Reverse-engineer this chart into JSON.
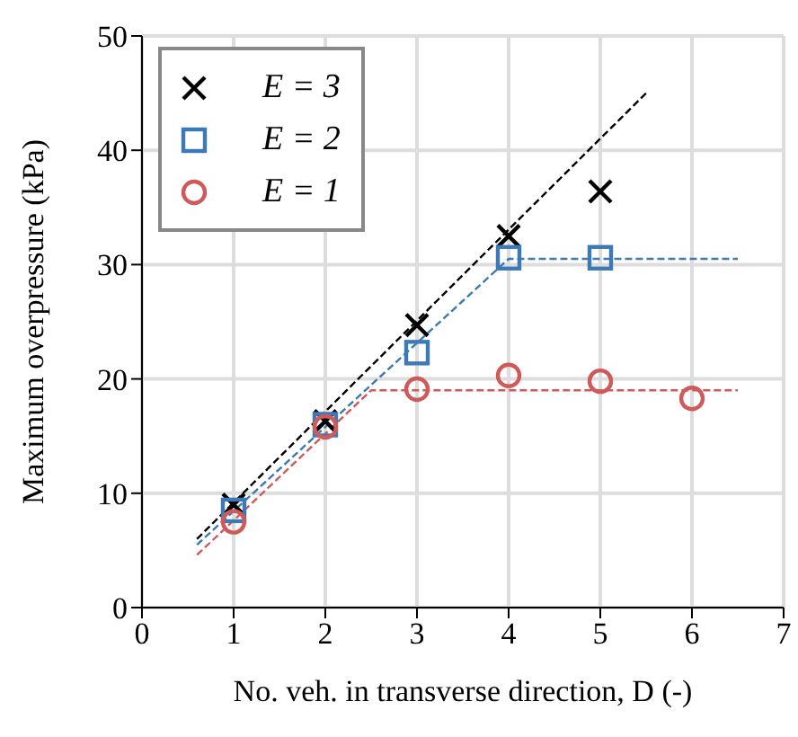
{
  "chart_data": {
    "type": "scatter",
    "xlabel": "No. veh. in transverse direction, D (-)",
    "ylabel": "Maximum overpressure (kPa)",
    "xlim": [
      0,
      7
    ],
    "xticks": [
      0,
      1,
      2,
      3,
      4,
      5,
      6,
      7
    ],
    "ylim": [
      0,
      50
    ],
    "yticks": [
      0,
      10,
      20,
      30,
      40,
      50
    ],
    "grid": true,
    "legend": "top left",
    "series": [
      {
        "name": "E = 3",
        "marker": "cross",
        "color": "#000000",
        "x": [
          1,
          2,
          3,
          4,
          5
        ],
        "values": [
          9,
          16.3,
          24.7,
          32.5,
          36.4
        ]
      },
      {
        "name": "E = 2",
        "marker": "square",
        "color": "#3d7ab5",
        "x": [
          1,
          2,
          3,
          4,
          5
        ],
        "values": [
          8.5,
          16,
          22.3,
          30.6,
          30.6
        ]
      },
      {
        "name": "E = 1",
        "marker": "circle",
        "color": "#d05a5a",
        "x": [
          1,
          2,
          3,
          4,
          5,
          6
        ],
        "values": [
          7.5,
          15.8,
          19.1,
          20.3,
          19.8,
          18.3
        ]
      },
      {
        "type": "line",
        "line_style": "dashed",
        "color": "#000000",
        "x": [
          0.6,
          5.5
        ],
        "values": [
          6,
          45
        ]
      },
      {
        "type": "line",
        "line_style": "dashed",
        "color": "#3d7ab5",
        "x": [
          0.6,
          4,
          6.5
        ],
        "values": [
          5.5,
          30.5,
          30.5
        ]
      },
      {
        "type": "line",
        "line_style": "dashed",
        "color": "#d05a5a",
        "x": [
          0.6,
          2.5,
          6.5
        ],
        "values": [
          4.6,
          19,
          19
        ]
      }
    ]
  }
}
